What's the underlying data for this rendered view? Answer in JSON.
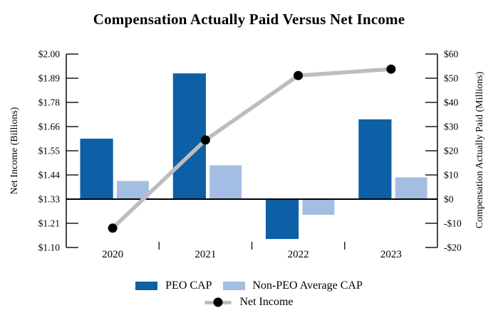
{
  "title": "Compensation Actually Paid Versus Net Income",
  "chart_data": {
    "type": "bar",
    "subtype": "combo-bar-line-dual-axis",
    "categories": [
      "2020",
      "2021",
      "2022",
      "2023"
    ],
    "bar_series": [
      {
        "name": "PEO CAP",
        "axis": "right",
        "color": "#0D60A6",
        "values": [
          25,
          52,
          -16.5,
          33
        ]
      },
      {
        "name": "Non-PEO Average CAP",
        "axis": "right",
        "color": "#A4BDE3",
        "values": [
          7.5,
          14,
          -6.5,
          9
        ]
      }
    ],
    "line_series": {
      "name": "Net Income",
      "axis": "left",
      "color": "#BDBDBD",
      "marker_color": "#000000",
      "values": [
        1.19,
        1.6,
        1.9,
        1.93
      ]
    },
    "left_axis": {
      "label": "Net Income (Billions)",
      "min": 1.1,
      "max": 2.0,
      "tick_values": [
        2.0,
        1.8875,
        1.775,
        1.6625,
        1.55,
        1.4375,
        1.325,
        1.2125,
        1.1
      ],
      "tick_labels": [
        "$2.00",
        "$1.89",
        "$1.78",
        "$1.66",
        "$1.55",
        "$1.44",
        "$1.33",
        "$1.21",
        "$1.10"
      ]
    },
    "right_axis": {
      "label": "Compensation Actually Paid (Millions)",
      "min": -20,
      "max": 60,
      "tick_values": [
        60,
        50,
        40,
        30,
        20,
        10,
        0,
        -10,
        -20
      ],
      "tick_labels": [
        "$60",
        "$50",
        "$40",
        "$30",
        "$20",
        "$10",
        "$0",
        "-$10",
        "-$20"
      ]
    },
    "baseline_right_value": 0,
    "grid": "off",
    "legend_position": "bottom"
  },
  "legend": {
    "peo_label": "PEO CAP",
    "non_peo_label": "Non-PEO Average CAP",
    "net_income_label": "Net Income"
  }
}
